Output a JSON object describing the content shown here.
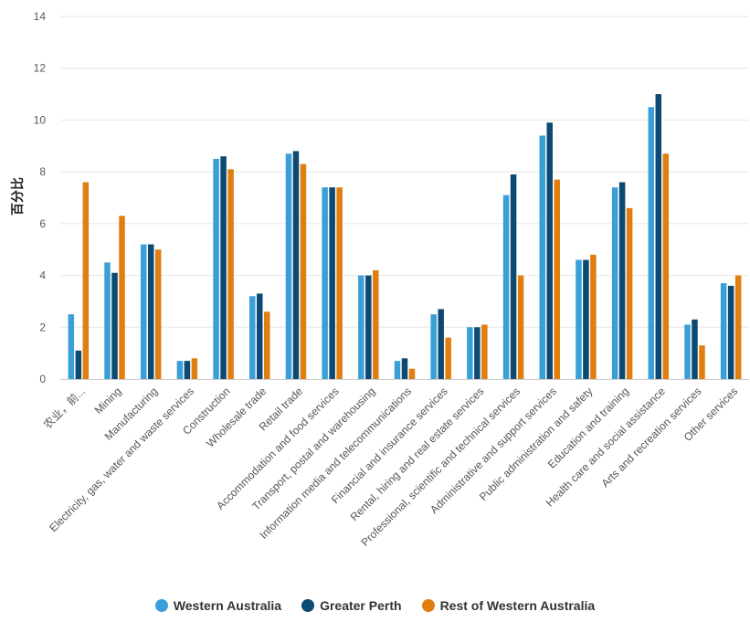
{
  "chart_data": {
    "type": "bar",
    "title": "",
    "xlabel": "",
    "ylabel": "百分比",
    "ylim": [
      0,
      14
    ],
    "yticks": [
      0,
      2,
      4,
      6,
      8,
      10,
      12,
      14
    ],
    "grid": true,
    "legend_position": "bottom-center",
    "categories": [
      "农业，前...",
      "Mining",
      "Manufacturing",
      "Electricity, gas, water and waste services",
      "Construction",
      "Wholesale trade",
      "Retail trade",
      "Accommodation and food services",
      "Transport, postal and warehousing",
      "Information media and telecommunications",
      "Financial and insurance services",
      "Rental, hiring and real estate services",
      "Professional, scientific and technical services",
      "Administrative and support services",
      "Public administration and safety",
      "Education and training",
      "Health care and social assistance",
      "Arts and recreation services",
      "Other services"
    ],
    "series": [
      {
        "name": "Western Australia",
        "color": "#3a9fd6",
        "values": [
          2.5,
          4.5,
          5.2,
          0.7,
          8.5,
          3.2,
          8.7,
          7.4,
          4.0,
          0.7,
          2.5,
          2.0,
          7.1,
          9.4,
          4.6,
          7.4,
          10.5,
          2.1,
          3.7
        ]
      },
      {
        "name": "Greater Perth",
        "color": "#0d4a73",
        "values": [
          1.1,
          4.1,
          5.2,
          0.7,
          8.6,
          3.3,
          8.8,
          7.4,
          4.0,
          0.8,
          2.7,
          2.0,
          7.9,
          9.9,
          4.6,
          7.6,
          11.0,
          2.3,
          3.6
        ]
      },
      {
        "name": "Rest of Western Australia",
        "color": "#e07f10",
        "values": [
          7.6,
          6.3,
          5.0,
          0.8,
          8.1,
          2.6,
          8.3,
          7.4,
          4.2,
          0.4,
          1.6,
          2.1,
          4.0,
          7.7,
          4.8,
          6.6,
          8.7,
          1.3,
          4.0
        ]
      }
    ]
  }
}
